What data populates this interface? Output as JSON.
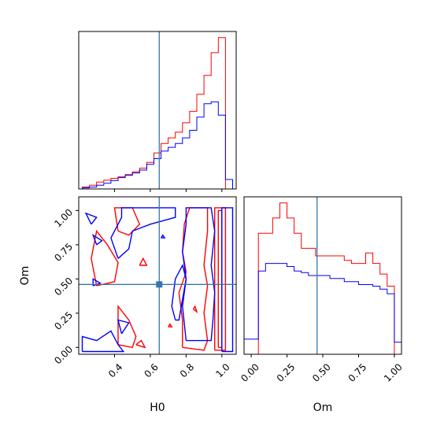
{
  "colors": {
    "series_a": "#ff0000",
    "series_b": "#0000ff",
    "truth": "#3776ab",
    "axes": "#000000",
    "background": "#ffffff"
  },
  "chart_data": [
    {
      "type": "histogram",
      "panel": "H0 marginal",
      "xlim": [
        0.2,
        1.08
      ],
      "y_ticks_shown": false,
      "x_tick_labels_shown": false,
      "truth": 0.65,
      "bin_edges": [
        0.22,
        0.26,
        0.3,
        0.34,
        0.38,
        0.42,
        0.46,
        0.5,
        0.54,
        0.58,
        0.62,
        0.66,
        0.7,
        0.74,
        0.78,
        0.82,
        0.86,
        0.9,
        0.94,
        0.98,
        1.02,
        1.06
      ],
      "series": [
        {
          "color": "red",
          "values": [
            0.5,
            1,
            1.8,
            2.3,
            2.8,
            3.2,
            3.8,
            4.5,
            5.5,
            7,
            9.5,
            12,
            13.5,
            15,
            17.5,
            20.5,
            25,
            30,
            36,
            40,
            0
          ]
        },
        {
          "color": "blue",
          "values": [
            0.3,
            0.5,
            1,
            1.5,
            2.2,
            3,
            3.6,
            4.2,
            5,
            6.5,
            8,
            10,
            11,
            12,
            13.5,
            15.5,
            19,
            22.5,
            23,
            19.5,
            2.5
          ]
        }
      ]
    },
    {
      "type": "contour",
      "panel": "H0 vs Om",
      "xlabel": "H0",
      "ylabel": "Om",
      "x_ticks": [
        "0.4",
        "0.6",
        "0.8",
        "1.0"
      ],
      "y_ticks": [
        "0.00",
        "0.25",
        "0.50",
        "0.75",
        "1.00"
      ],
      "xlim": [
        0.2,
        1.08
      ],
      "ylim": [
        -0.05,
        1.1
      ],
      "truth": {
        "x": 0.65,
        "y": 0.46
      },
      "series": [
        {
          "color": "red",
          "contours": [
            [
              [
                0.96,
                -0.02
              ],
              [
                0.96,
                1.02
              ],
              [
                1.02,
                1.02
              ],
              [
                1.02,
                -0.02
              ],
              [
                0.96,
                -0.02
              ]
            ],
            [
              [
                0.98,
                0.0
              ],
              [
                0.98,
                1.0
              ],
              [
                1.0,
                1.0
              ],
              [
                1.0,
                0.0
              ],
              [
                0.98,
                0.0
              ]
            ],
            [
              [
                0.78,
                0.0
              ],
              [
                0.78,
                0.2
              ],
              [
                0.76,
                0.4
              ],
              [
                0.8,
                0.55
              ],
              [
                0.78,
                0.7
              ],
              [
                0.79,
                0.9
              ],
              [
                0.82,
                1.02
              ],
              [
                0.92,
                1.02
              ],
              [
                0.92,
                0.85
              ],
              [
                0.9,
                0.6
              ],
              [
                0.92,
                0.45
              ],
              [
                0.9,
                0.25
              ],
              [
                0.92,
                0.05
              ],
              [
                0.9,
                -0.02
              ],
              [
                0.78,
                0.0
              ]
            ],
            [
              [
                0.3,
                0.45
              ],
              [
                0.27,
                0.65
              ],
              [
                0.3,
                0.85
              ],
              [
                0.36,
                0.75
              ],
              [
                0.42,
                0.62
              ],
              [
                0.4,
                0.48
              ],
              [
                0.3,
                0.45
              ]
            ],
            [
              [
                0.42,
                0.85
              ],
              [
                0.4,
                1.02
              ],
              [
                0.5,
                1.02
              ],
              [
                0.54,
                0.9
              ],
              [
                0.48,
                0.82
              ],
              [
                0.42,
                0.85
              ]
            ],
            [
              [
                0.42,
                0.02
              ],
              [
                0.42,
                0.3
              ],
              [
                0.48,
                0.2
              ],
              [
                0.52,
                0.08
              ],
              [
                0.5,
                0.0
              ],
              [
                0.42,
                0.02
              ]
            ],
            [
              [
                0.52,
                0.02
              ],
              [
                0.55,
                0.05
              ],
              [
                0.57,
                0.0
              ],
              [
                0.52,
                0.02
              ]
            ],
            [
              [
                0.54,
                0.6
              ],
              [
                0.56,
                0.65
              ],
              [
                0.58,
                0.6
              ],
              [
                0.54,
                0.6
              ]
            ],
            [
              [
                0.7,
                0.15
              ],
              [
                0.71,
                0.17
              ],
              [
                0.72,
                0.15
              ],
              [
                0.7,
                0.15
              ]
            ],
            [
              [
                0.84,
                0.28
              ],
              [
                0.85,
                0.3
              ],
              [
                0.86,
                0.26
              ],
              [
                0.84,
                0.28
              ]
            ]
          ]
        },
        {
          "color": "blue",
          "contours": [
            [
              [
                0.22,
                -0.03
              ],
              [
                0.22,
                0.08
              ],
              [
                0.3,
                0.05
              ],
              [
                0.38,
                0.12
              ],
              [
                0.42,
                0.02
              ],
              [
                0.45,
                -0.03
              ],
              [
                0.22,
                -0.03
              ]
            ],
            [
              [
                0.27,
                0.9
              ],
              [
                0.24,
                0.98
              ],
              [
                0.3,
                0.95
              ],
              [
                0.27,
                0.9
              ]
            ],
            [
              [
                0.3,
                0.75
              ],
              [
                0.28,
                0.82
              ],
              [
                0.33,
                0.78
              ],
              [
                0.3,
                0.75
              ]
            ],
            [
              [
                0.28,
                0.45
              ],
              [
                0.28,
                0.5
              ],
              [
                0.32,
                0.47
              ],
              [
                0.28,
                0.45
              ]
            ],
            [
              [
                0.44,
                0.1
              ],
              [
                0.42,
                0.2
              ],
              [
                0.48,
                0.18
              ],
              [
                0.44,
                0.1
              ]
            ],
            [
              [
                0.42,
                0.65
              ],
              [
                0.38,
                0.8
              ],
              [
                0.44,
                0.95
              ],
              [
                0.44,
                1.02
              ],
              [
                0.74,
                1.02
              ],
              [
                0.74,
                0.95
              ],
              [
                0.6,
                0.9
              ],
              [
                0.5,
                0.85
              ],
              [
                0.48,
                0.72
              ],
              [
                0.42,
                0.65
              ]
            ],
            [
              [
                0.8,
                0.05
              ],
              [
                0.78,
                0.3
              ],
              [
                0.8,
                0.5
              ],
              [
                0.78,
                0.7
              ],
              [
                0.8,
                0.9
              ],
              [
                0.8,
                1.02
              ],
              [
                0.94,
                1.02
              ],
              [
                0.96,
                0.85
              ],
              [
                0.94,
                0.6
              ],
              [
                0.96,
                0.4
              ],
              [
                0.95,
                0.2
              ],
              [
                0.94,
                0.05
              ],
              [
                0.8,
                0.05
              ]
            ],
            [
              [
                0.74,
                0.2
              ],
              [
                0.72,
                0.3
              ],
              [
                0.74,
                0.5
              ],
              [
                0.78,
                0.6
              ],
              [
                0.8,
                0.5
              ],
              [
                0.78,
                0.35
              ],
              [
                0.76,
                0.2
              ],
              [
                0.74,
                0.2
              ]
            ],
            [
              [
                1.0,
                -0.03
              ],
              [
                1.0,
                1.02
              ],
              [
                1.06,
                1.02
              ],
              [
                1.06,
                -0.03
              ],
              [
                1.0,
                -0.03
              ]
            ],
            [
              [
                0.66,
                0.8
              ],
              [
                0.67,
                0.82
              ],
              [
                0.68,
                0.8
              ],
              [
                0.66,
                0.8
              ]
            ]
          ]
        }
      ]
    },
    {
      "type": "histogram",
      "panel": "Om marginal",
      "xlabel": "Om",
      "x_ticks": [
        "0.00",
        "0.25",
        "0.50",
        "0.75",
        "1.00"
      ],
      "xlim": [
        -0.05,
        1.05
      ],
      "y_ticks_shown": false,
      "truth": 0.46,
      "bin_edges": [
        -0.05,
        0.0,
        0.05,
        0.1,
        0.15,
        0.2,
        0.25,
        0.3,
        0.35,
        0.4,
        0.45,
        0.5,
        0.55,
        0.6,
        0.65,
        0.7,
        0.75,
        0.8,
        0.85,
        0.9,
        0.95,
        1.0,
        1.05
      ],
      "series": [
        {
          "color": "red",
          "values": [
            0,
            0,
            8,
            8,
            9,
            10,
            9,
            8,
            7,
            7,
            6.5,
            6.5,
            6.5,
            6.5,
            6.2,
            6,
            6,
            6.7,
            6,
            5.3,
            4.5,
            0
          ]
        },
        {
          "color": "blue",
          "values": [
            1,
            1,
            5.5,
            6,
            6,
            6,
            5.8,
            5.5,
            5.4,
            5.2,
            5.2,
            5.2,
            5,
            5,
            4.8,
            4.8,
            4.6,
            4.6,
            4.5,
            4.3,
            4,
            0.8
          ]
        }
      ]
    }
  ]
}
